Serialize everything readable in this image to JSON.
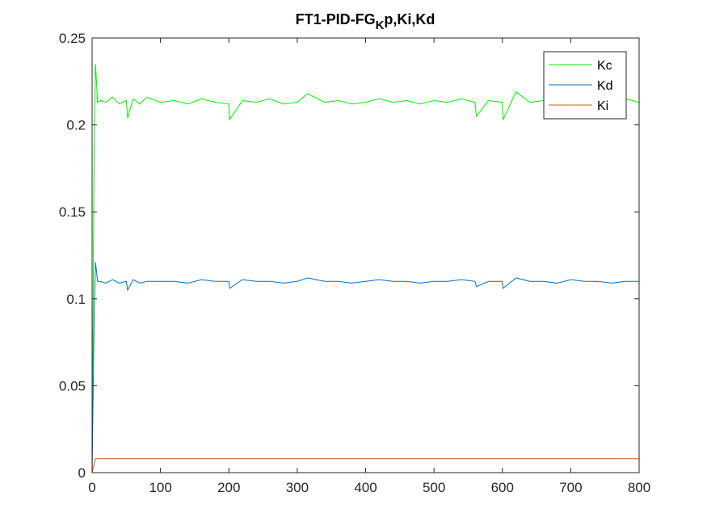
{
  "chart_data": {
    "type": "line",
    "title": {
      "prefix": "FT1-PID-FG",
      "subscript": "K",
      "suffix": "p,Ki,Kd"
    },
    "xlabel": "",
    "ylabel": "",
    "xlim": [
      0,
      800
    ],
    "ylim": [
      0,
      0.25
    ],
    "xticks": [
      0,
      100,
      200,
      300,
      400,
      500,
      600,
      700,
      800
    ],
    "yticks": [
      0,
      0.05,
      0.1,
      0.15,
      0.2,
      0.25
    ],
    "ytick_labels": [
      "0",
      "0.05",
      "0.1",
      "0.15",
      "0.2",
      "0.25"
    ],
    "grid": false,
    "legend_position": "top-right",
    "series": [
      {
        "name": "Kc",
        "color": "#00ee00",
        "x": [
          0,
          3,
          5,
          8,
          12,
          20,
          30,
          40,
          50,
          52,
          60,
          70,
          80,
          100,
          120,
          140,
          160,
          180,
          200,
          201,
          220,
          240,
          260,
          280,
          300,
          315,
          340,
          360,
          380,
          400,
          420,
          440,
          460,
          480,
          500,
          520,
          540,
          560,
          562,
          580,
          600,
          601,
          620,
          640,
          660,
          680,
          700,
          720,
          740,
          760,
          780,
          800
        ],
        "values": [
          0,
          0.19,
          0.235,
          0.213,
          0.214,
          0.213,
          0.216,
          0.212,
          0.214,
          0.204,
          0.215,
          0.212,
          0.216,
          0.213,
          0.214,
          0.212,
          0.215,
          0.213,
          0.212,
          0.203,
          0.214,
          0.213,
          0.215,
          0.212,
          0.213,
          0.218,
          0.213,
          0.214,
          0.212,
          0.213,
          0.215,
          0.213,
          0.214,
          0.212,
          0.214,
          0.213,
          0.215,
          0.213,
          0.205,
          0.214,
          0.213,
          0.203,
          0.219,
          0.213,
          0.214,
          0.212,
          0.215,
          0.213,
          0.214,
          0.212,
          0.215,
          0.213
        ]
      },
      {
        "name": "Kd",
        "color": "#0072bd",
        "x": [
          0,
          3,
          5,
          8,
          12,
          20,
          30,
          40,
          50,
          52,
          60,
          70,
          80,
          100,
          120,
          140,
          160,
          180,
          200,
          201,
          220,
          240,
          260,
          280,
          300,
          315,
          340,
          360,
          380,
          400,
          420,
          440,
          460,
          480,
          500,
          520,
          540,
          560,
          562,
          580,
          600,
          601,
          620,
          640,
          660,
          680,
          700,
          720,
          740,
          760,
          780,
          800
        ],
        "values": [
          0,
          0.09,
          0.121,
          0.11,
          0.11,
          0.109,
          0.111,
          0.109,
          0.11,
          0.105,
          0.111,
          0.109,
          0.11,
          0.11,
          0.11,
          0.109,
          0.111,
          0.11,
          0.11,
          0.106,
          0.111,
          0.11,
          0.11,
          0.109,
          0.11,
          0.112,
          0.11,
          0.11,
          0.109,
          0.11,
          0.111,
          0.11,
          0.11,
          0.109,
          0.11,
          0.11,
          0.111,
          0.11,
          0.107,
          0.11,
          0.11,
          0.106,
          0.112,
          0.11,
          0.11,
          0.109,
          0.111,
          0.11,
          0.11,
          0.109,
          0.11,
          0.11
        ]
      },
      {
        "name": "Ki",
        "color": "#d95319",
        "x": [
          0,
          3,
          5,
          8,
          100,
          200,
          300,
          400,
          500,
          600,
          700,
          800
        ],
        "values": [
          0,
          0.005,
          0.008,
          0.008,
          0.008,
          0.008,
          0.008,
          0.008,
          0.008,
          0.008,
          0.008,
          0.008
        ]
      }
    ]
  }
}
